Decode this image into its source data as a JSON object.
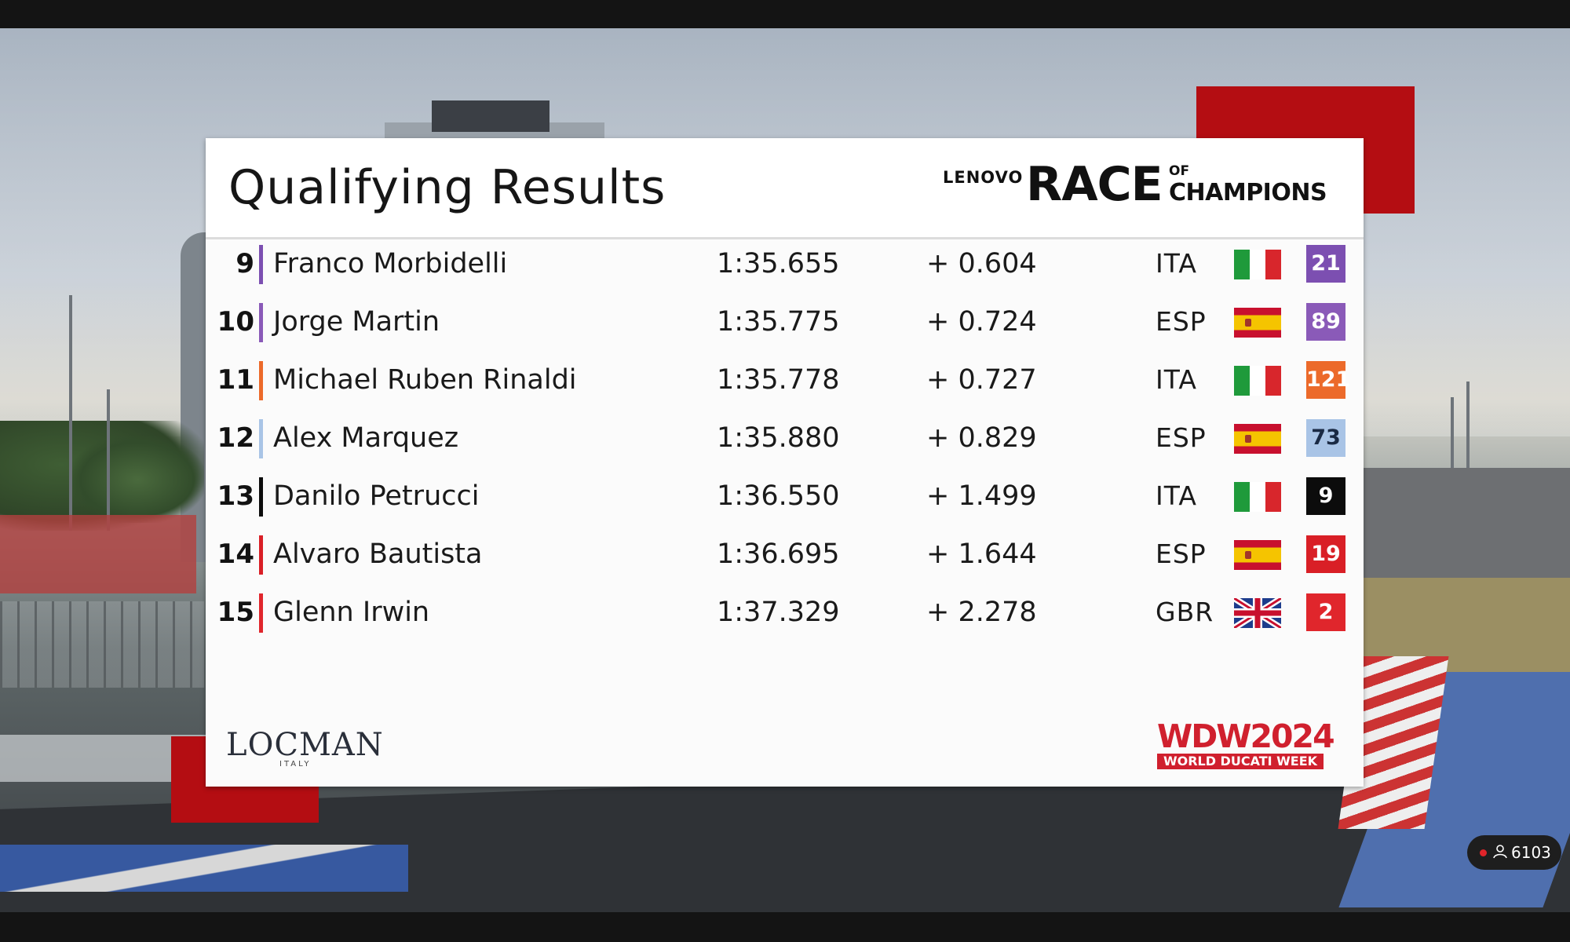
{
  "header": {
    "title": "Qualifying Results",
    "sponsor_logo": {
      "lenovo": "LENOVO",
      "race": "RACE",
      "of": "OF",
      "champions": "CHAMPIONS"
    }
  },
  "results": [
    {
      "pos": "9",
      "name": "Franco Morbidelli",
      "time": "1:35.655",
      "gap": "+ 0.604",
      "nation": "ITA",
      "flag": "italy-flag",
      "number": "21",
      "color": "#7c4fb1"
    },
    {
      "pos": "10",
      "name": "Jorge Martin",
      "time": "1:35.775",
      "gap": "+ 0.724",
      "nation": "ESP",
      "flag": "spain-flag",
      "number": "89",
      "color": "#8a5ab8"
    },
    {
      "pos": "11",
      "name": "Michael Ruben Rinaldi",
      "time": "1:35.778",
      "gap": "+ 0.727",
      "nation": "ITA",
      "flag": "italy-flag",
      "number": "121",
      "color": "#ec6a2a"
    },
    {
      "pos": "12",
      "name": "Alex Marquez",
      "time": "1:35.880",
      "gap": "+ 0.829",
      "nation": "ESP",
      "flag": "spain-flag",
      "number": "73",
      "color": "#a9c4e6"
    },
    {
      "pos": "13",
      "name": "Danilo Petrucci",
      "time": "1:36.550",
      "gap": "+ 1.499",
      "nation": "ITA",
      "flag": "italy-flag",
      "number": "9",
      "color": "#0c0c0c"
    },
    {
      "pos": "14",
      "name": "Alvaro Bautista",
      "time": "1:36.695",
      "gap": "+ 1.644",
      "nation": "ESP",
      "flag": "spain-flag",
      "number": "19",
      "color": "#d91f26"
    },
    {
      "pos": "15",
      "name": "Glenn Irwin",
      "time": "1:37.329",
      "gap": "+ 2.278",
      "nation": "GBR",
      "flag": "uk-flag",
      "number": "2",
      "color": "#e0262c"
    }
  ],
  "footer": {
    "locman": "LOCMAN",
    "locman_sub": "ITALY",
    "wdw": "WDW2024",
    "wdw_sub": "WORLD DUCATI WEEK"
  },
  "viewer_badge": {
    "count": "6103",
    "icon": "person-icon",
    "live_color": "#e0242a"
  }
}
